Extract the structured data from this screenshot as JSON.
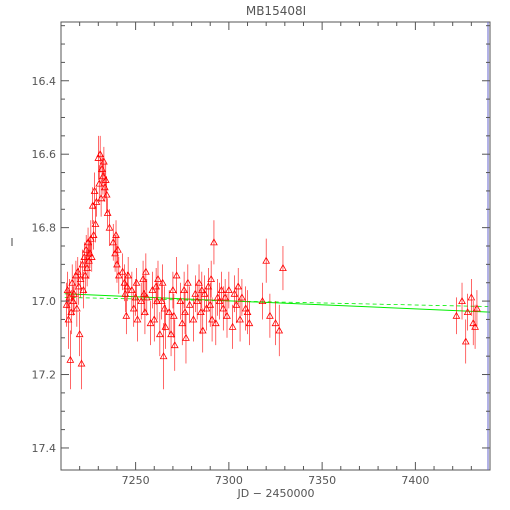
{
  "chart_data": {
    "type": "scatter",
    "title": "MB15408I",
    "xlabel": "JD  −  2450000",
    "ylabel": "I",
    "xlim": [
      7210,
      7440
    ],
    "ylim": [
      17.46,
      16.24
    ],
    "y_inverted": true,
    "xticks": [
      7250,
      7300,
      7350,
      7400
    ],
    "yticks": [
      16.4,
      16.6,
      16.8,
      17.0,
      17.2,
      17.4
    ],
    "marker": "triangle",
    "colors": {
      "points": "#ff0000",
      "fit": "#00ee00",
      "axes": "#555555",
      "edge": "#6666cc"
    },
    "fit_line": {
      "x": [
        7212,
        7440
      ],
      "y": [
        16.98,
        17.03
      ]
    },
    "ref_line": {
      "x": [
        7212,
        7440
      ],
      "y": [
        16.99,
        17.015
      ]
    },
    "series": [
      {
        "points": [
          {
            "x": 7213,
            "y": 17.01,
            "e": 0.06
          },
          {
            "x": 7213.5,
            "y": 16.97,
            "e": 0.05
          },
          {
            "x": 7214,
            "y": 17.05,
            "e": 0.08
          },
          {
            "x": 7214.5,
            "y": 16.99,
            "e": 0.05
          },
          {
            "x": 7215,
            "y": 17.16,
            "e": 0.08
          },
          {
            "x": 7215.5,
            "y": 17.03,
            "e": 0.06
          },
          {
            "x": 7216,
            "y": 16.95,
            "e": 0.05
          },
          {
            "x": 7216.5,
            "y": 17.0,
            "e": 0.04
          },
          {
            "x": 7217,
            "y": 16.98,
            "e": 0.05
          },
          {
            "x": 7218,
            "y": 16.93,
            "e": 0.04
          },
          {
            "x": 7218.5,
            "y": 17.02,
            "e": 0.05
          },
          {
            "x": 7219,
            "y": 16.92,
            "e": 0.04
          },
          {
            "x": 7219.5,
            "y": 16.96,
            "e": 0.05
          },
          {
            "x": 7220,
            "y": 17.09,
            "e": 0.06
          },
          {
            "x": 7220.5,
            "y": 16.94,
            "e": 0.05
          },
          {
            "x": 7221,
            "y": 17.17,
            "e": 0.07
          },
          {
            "x": 7221.5,
            "y": 16.9,
            "e": 0.04
          },
          {
            "x": 7222,
            "y": 16.97,
            "e": 0.05
          },
          {
            "x": 7222.5,
            "y": 16.88,
            "e": 0.04
          },
          {
            "x": 7223,
            "y": 16.93,
            "e": 0.05
          },
          {
            "x": 7223.5,
            "y": 16.86,
            "e": 0.04
          },
          {
            "x": 7224,
            "y": 16.91,
            "e": 0.05
          },
          {
            "x": 7224.5,
            "y": 16.84,
            "e": 0.04
          },
          {
            "x": 7225,
            "y": 16.89,
            "e": 0.05
          },
          {
            "x": 7225.5,
            "y": 16.87,
            "e": 0.04
          },
          {
            "x": 7226,
            "y": 16.83,
            "e": 0.05
          },
          {
            "x": 7226.5,
            "y": 16.88,
            "e": 0.04
          },
          {
            "x": 7227,
            "y": 16.74,
            "e": 0.05
          },
          {
            "x": 7227.5,
            "y": 16.82,
            "e": 0.04
          },
          {
            "x": 7228,
            "y": 16.7,
            "e": 0.05
          },
          {
            "x": 7228.5,
            "y": 16.79,
            "e": 0.05
          },
          {
            "x": 7229,
            "y": 16.73,
            "e": 0.04
          },
          {
            "x": 7230,
            "y": 16.61,
            "e": 0.06
          },
          {
            "x": 7230.5,
            "y": 16.68,
            "e": 0.05
          },
          {
            "x": 7231,
            "y": 16.6,
            "e": 0.05
          },
          {
            "x": 7231.5,
            "y": 16.72,
            "e": 0.05
          },
          {
            "x": 7232,
            "y": 16.64,
            "e": 0.04
          },
          {
            "x": 7232.5,
            "y": 16.66,
            "e": 0.05
          },
          {
            "x": 7233,
            "y": 16.62,
            "e": 0.04
          },
          {
            "x": 7233.5,
            "y": 16.69,
            "e": 0.04
          },
          {
            "x": 7234,
            "y": 16.67,
            "e": 0.05
          },
          {
            "x": 7234.5,
            "y": 16.71,
            "e": 0.05
          },
          {
            "x": 7235,
            "y": 16.76,
            "e": 0.04
          },
          {
            "x": 7236,
            "y": 16.8,
            "e": 0.05
          },
          {
            "x": 7238,
            "y": 16.84,
            "e": 0.05
          },
          {
            "x": 7239,
            "y": 16.87,
            "e": 0.05
          },
          {
            "x": 7239.5,
            "y": 16.82,
            "e": 0.04
          },
          {
            "x": 7240,
            "y": 16.9,
            "e": 0.05
          },
          {
            "x": 7240.5,
            "y": 16.86,
            "e": 0.04
          },
          {
            "x": 7241,
            "y": 16.93,
            "e": 0.05
          },
          {
            "x": 7243,
            "y": 16.92,
            "e": 0.05
          },
          {
            "x": 7244,
            "y": 16.95,
            "e": 0.05
          },
          {
            "x": 7244.5,
            "y": 16.98,
            "e": 0.05
          },
          {
            "x": 7245,
            "y": 17.04,
            "e": 0.05
          },
          {
            "x": 7245.5,
            "y": 16.96,
            "e": 0.04
          },
          {
            "x": 7246,
            "y": 16.93,
            "e": 0.05
          },
          {
            "x": 7248,
            "y": 16.97,
            "e": 0.05
          },
          {
            "x": 7249,
            "y": 17.02,
            "e": 0.05
          },
          {
            "x": 7250,
            "y": 16.99,
            "e": 0.05
          },
          {
            "x": 7250.5,
            "y": 16.95,
            "e": 0.04
          },
          {
            "x": 7251,
            "y": 17.05,
            "e": 0.06
          },
          {
            "x": 7253,
            "y": 17.0,
            "e": 0.05
          },
          {
            "x": 7254,
            "y": 16.94,
            "e": 0.05
          },
          {
            "x": 7254.5,
            "y": 16.98,
            "e": 0.05
          },
          {
            "x": 7255,
            "y": 17.03,
            "e": 0.06
          },
          {
            "x": 7255.5,
            "y": 16.92,
            "e": 0.05
          },
          {
            "x": 7256,
            "y": 16.99,
            "e": 0.05
          },
          {
            "x": 7258,
            "y": 17.06,
            "e": 0.06
          },
          {
            "x": 7259,
            "y": 16.97,
            "e": 0.05
          },
          {
            "x": 7260,
            "y": 17.05,
            "e": 0.06
          },
          {
            "x": 7261,
            "y": 16.96,
            "e": 0.05
          },
          {
            "x": 7261.5,
            "y": 17.0,
            "e": 0.05
          },
          {
            "x": 7262,
            "y": 16.94,
            "e": 0.05
          },
          {
            "x": 7263,
            "y": 17.09,
            "e": 0.06
          },
          {
            "x": 7264,
            "y": 17.0,
            "e": 0.05
          },
          {
            "x": 7264.5,
            "y": 16.95,
            "e": 0.05
          },
          {
            "x": 7265,
            "y": 17.15,
            "e": 0.09
          },
          {
            "x": 7265.5,
            "y": 17.02,
            "e": 0.06
          },
          {
            "x": 7266,
            "y": 17.07,
            "e": 0.06
          },
          {
            "x": 7268,
            "y": 17.03,
            "e": 0.06
          },
          {
            "x": 7269,
            "y": 17.09,
            "e": 0.06
          },
          {
            "x": 7270,
            "y": 16.97,
            "e": 0.05
          },
          {
            "x": 7270.5,
            "y": 17.04,
            "e": 0.06
          },
          {
            "x": 7271,
            "y": 17.12,
            "e": 0.07
          },
          {
            "x": 7272,
            "y": 16.93,
            "e": 0.05
          },
          {
            "x": 7274,
            "y": 17.0,
            "e": 0.05
          },
          {
            "x": 7275,
            "y": 17.06,
            "e": 0.06
          },
          {
            "x": 7276,
            "y": 16.97,
            "e": 0.05
          },
          {
            "x": 7276.5,
            "y": 17.03,
            "e": 0.06
          },
          {
            "x": 7277,
            "y": 17.1,
            "e": 0.07
          },
          {
            "x": 7278,
            "y": 16.95,
            "e": 0.05
          },
          {
            "x": 7279,
            "y": 17.01,
            "e": 0.05
          },
          {
            "x": 7281,
            "y": 17.05,
            "e": 0.06
          },
          {
            "x": 7282,
            "y": 16.98,
            "e": 0.05
          },
          {
            "x": 7283,
            "y": 17.0,
            "e": 0.05
          },
          {
            "x": 7284,
            "y": 16.95,
            "e": 0.05
          },
          {
            "x": 7285,
            "y": 17.03,
            "e": 0.06
          },
          {
            "x": 7285.5,
            "y": 16.97,
            "e": 0.05
          },
          {
            "x": 7286,
            "y": 17.08,
            "e": 0.06
          },
          {
            "x": 7287,
            "y": 16.98,
            "e": 0.05
          },
          {
            "x": 7288,
            "y": 17.02,
            "e": 0.06
          },
          {
            "x": 7289,
            "y": 16.96,
            "e": 0.05
          },
          {
            "x": 7290,
            "y": 17.01,
            "e": 0.06
          },
          {
            "x": 7290.5,
            "y": 16.94,
            "e": 0.05
          },
          {
            "x": 7291,
            "y": 17.05,
            "e": 0.06
          },
          {
            "x": 7292,
            "y": 16.84,
            "e": 0.06
          },
          {
            "x": 7293,
            "y": 17.06,
            "e": 0.06
          },
          {
            "x": 7294,
            "y": 16.99,
            "e": 0.05
          },
          {
            "x": 7295,
            "y": 17.0,
            "e": 0.05
          },
          {
            "x": 7296,
            "y": 16.97,
            "e": 0.05
          },
          {
            "x": 7297,
            "y": 17.02,
            "e": 0.06
          },
          {
            "x": 7298,
            "y": 16.99,
            "e": 0.05
          },
          {
            "x": 7299,
            "y": 17.04,
            "e": 0.06
          },
          {
            "x": 7300,
            "y": 16.97,
            "e": 0.05
          },
          {
            "x": 7302,
            "y": 17.07,
            "e": 0.06
          },
          {
            "x": 7303,
            "y": 16.98,
            "e": 0.05
          },
          {
            "x": 7304,
            "y": 17.01,
            "e": 0.05
          },
          {
            "x": 7305,
            "y": 16.96,
            "e": 0.05
          },
          {
            "x": 7306,
            "y": 17.05,
            "e": 0.06
          },
          {
            "x": 7307,
            "y": 16.99,
            "e": 0.05
          },
          {
            "x": 7309,
            "y": 17.02,
            "e": 0.06
          },
          {
            "x": 7310,
            "y": 17.03,
            "e": 0.06
          },
          {
            "x": 7311,
            "y": 17.06,
            "e": 0.06
          },
          {
            "x": 7318,
            "y": 17.0,
            "e": 0.05
          },
          {
            "x": 7320,
            "y": 16.89,
            "e": 0.06
          },
          {
            "x": 7322,
            "y": 17.04,
            "e": 0.06
          },
          {
            "x": 7325,
            "y": 17.06,
            "e": 0.06
          },
          {
            "x": 7327,
            "y": 17.08,
            "e": 0.07
          },
          {
            "x": 7329,
            "y": 16.91,
            "e": 0.06
          },
          {
            "x": 7422,
            "y": 17.04,
            "e": 0.05
          },
          {
            "x": 7425,
            "y": 17.0,
            "e": 0.05
          },
          {
            "x": 7427,
            "y": 17.11,
            "e": 0.06
          },
          {
            "x": 7428,
            "y": 17.03,
            "e": 0.05
          },
          {
            "x": 7430,
            "y": 16.99,
            "e": 0.05
          },
          {
            "x": 7431,
            "y": 17.06,
            "e": 0.06
          },
          {
            "x": 7432,
            "y": 17.07,
            "e": 0.06
          },
          {
            "x": 7433,
            "y": 17.02,
            "e": 0.05
          }
        ]
      }
    ]
  }
}
